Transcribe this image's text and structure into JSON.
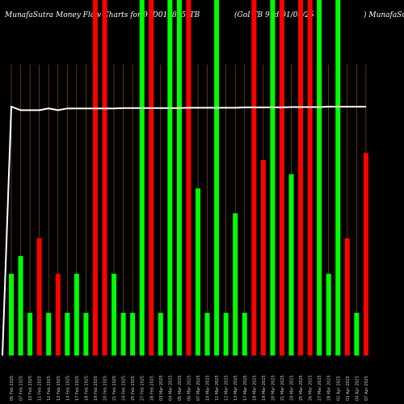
{
  "title": {
    "left": "MunafaSutra  Money Flow  Charts for 91D011825_TB",
    "middle": "(GoI TB 91d-01/08/25",
    "right": ") MunafaSutra.com"
  },
  "chart_data": {
    "type": "bar",
    "ylim": [
      0,
      10
    ],
    "colors": {
      "up": "#00ff00",
      "down": "#ff0000",
      "line": "#ffffff",
      "grid": "#a0522d"
    },
    "categories": [
      "05 Feb 2025",
      "07 Feb 2025",
      "10 Feb 2025",
      "11 Feb 2025",
      "12 Feb 2025",
      "13 Feb 2025",
      "14 Feb 2025",
      "17 Feb 2025",
      "18 Feb 2025",
      "19 Feb 2025",
      "20 Feb 2025",
      "21 Feb 2025",
      "24 Feb 2025",
      "25 Feb 2025",
      "27 Feb 2025",
      "28 Feb 2025",
      "03 Mar 2025",
      "04 Mar 2025",
      "05 Mar 2025",
      "06 Mar 2025",
      "07 Mar 2025",
      "10 Mar 2025",
      "11 Mar 2025",
      "12 Mar 2025",
      "13 Mar 2025",
      "17 Mar 2025",
      "18 Mar 2025",
      "19 Mar 2025",
      "20 Mar 2025",
      "21 Mar 2025",
      "24 Mar 2025",
      "25 Mar 2025",
      "26 Mar 2025",
      "27 Mar 2025",
      "28 Mar 2025",
      "02 Apr 2025",
      "03 Apr 2025",
      "04 Apr 2025",
      "07 Apr 2025"
    ],
    "values": [
      2.3,
      2.8,
      1.2,
      3.3,
      1.2,
      2.3,
      1.2,
      2.3,
      1.2,
      10,
      10,
      2.3,
      1.2,
      1.2,
      10,
      10,
      1.2,
      10,
      10,
      10,
      4.7,
      1.2,
      10,
      1.2,
      4.0,
      1.2,
      10,
      5.5,
      10,
      10,
      5.1,
      10,
      10,
      10,
      2.3,
      10,
      3.3,
      1.2,
      5.7
    ],
    "directions": [
      "up",
      "up",
      "up",
      "down",
      "up",
      "down",
      "up",
      "up",
      "up",
      "down",
      "down",
      "up",
      "up",
      "up",
      "up",
      "down",
      "up",
      "up",
      "up",
      "down",
      "up",
      "up",
      "up",
      "up",
      "up",
      "up",
      "down",
      "down",
      "up",
      "down",
      "up",
      "down",
      "down",
      "up",
      "up",
      "up",
      "down",
      "up",
      "down"
    ],
    "line": [
      7.0,
      6.9,
      6.9,
      6.9,
      6.95,
      6.9,
      6.95,
      6.95,
      6.95,
      6.95,
      6.95,
      6.95,
      6.96,
      6.96,
      6.96,
      6.96,
      6.96,
      6.96,
      6.96,
      6.97,
      6.97,
      6.97,
      6.97,
      6.97,
      6.97,
      6.98,
      6.98,
      6.98,
      6.98,
      6.98,
      6.99,
      6.99,
      6.99,
      6.99,
      7.0,
      7.0,
      7.0,
      7.0,
      7.0
    ],
    "line_start": 0
  }
}
